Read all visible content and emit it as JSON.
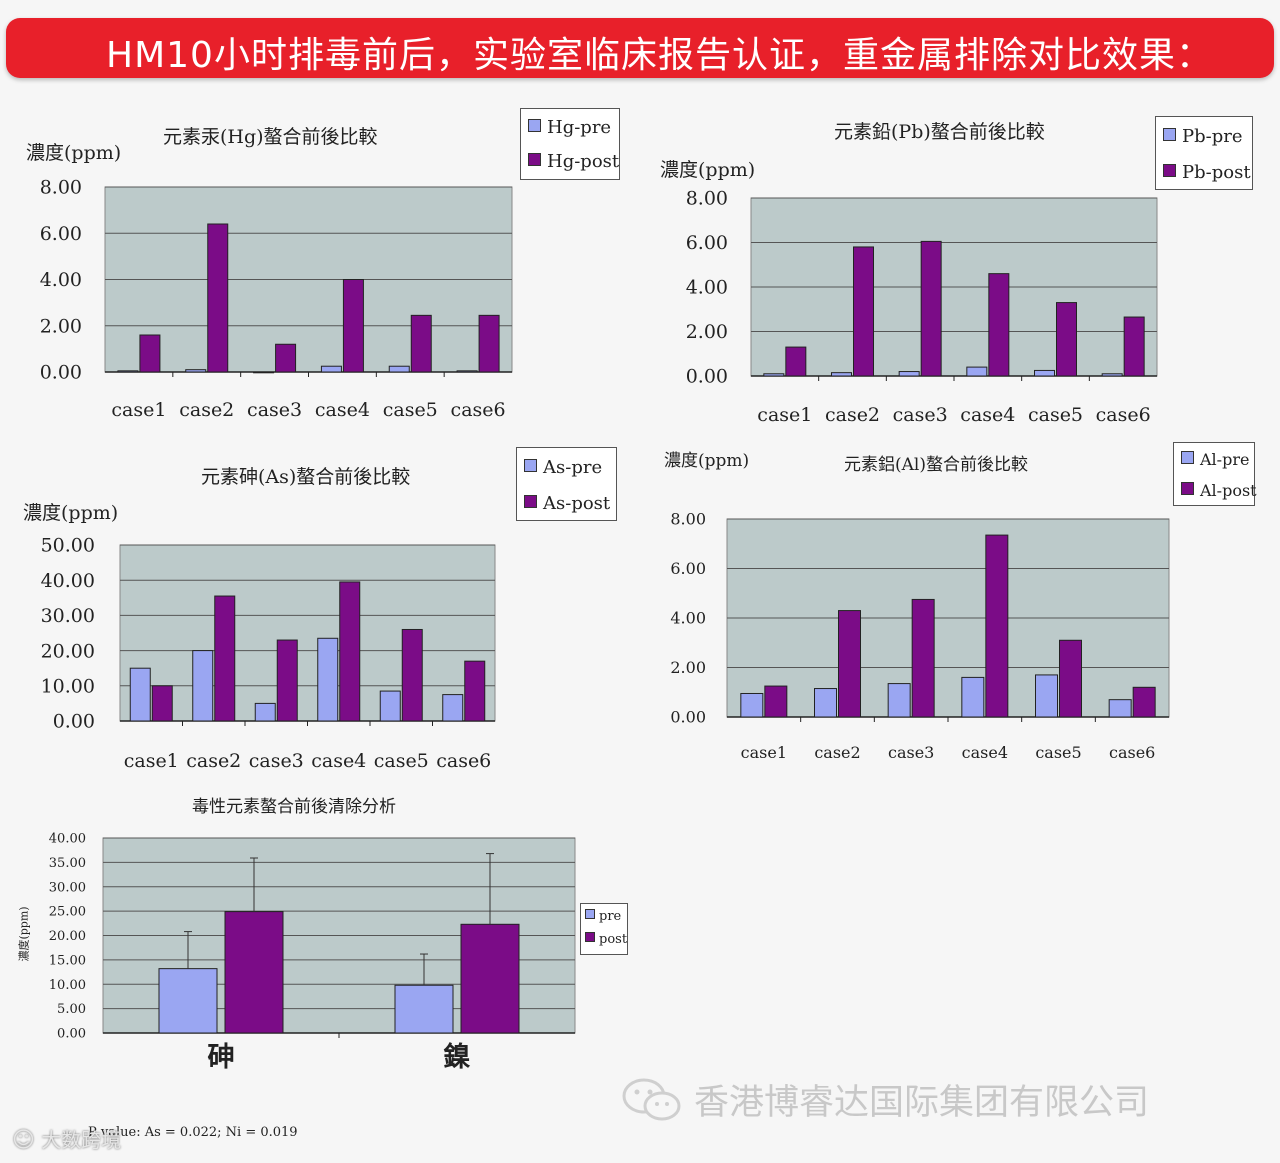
{
  "banner": {
    "text": "HM10小时排毒前后，实验室临床报告认证，重金属排除对比效果："
  },
  "colors": {
    "pre": "#9aa6f2",
    "post": "#7b0c87",
    "plot_bg": "#bccaca",
    "banner": "#e8202a"
  },
  "chart_data": [
    {
      "id": "hg",
      "type": "bar",
      "title": "元素汞(Hg)螯合前後比較",
      "ylabel": "濃度(ppm)",
      "categories": [
        "case1",
        "case2",
        "case3",
        "case4",
        "case5",
        "case6"
      ],
      "ylim": [
        0,
        8
      ],
      "yticks": [
        "0.00",
        "2.00",
        "4.00",
        "6.00",
        "8.00"
      ],
      "series": [
        {
          "name": "Hg-pre",
          "values": [
            0.05,
            0.1,
            0.0,
            0.25,
            0.25,
            0.05
          ]
        },
        {
          "name": "Hg-post",
          "values": [
            1.6,
            6.4,
            1.2,
            4.0,
            2.45,
            2.45
          ]
        }
      ]
    },
    {
      "id": "pb",
      "type": "bar",
      "title": "元素鉛(Pb)螯合前後比較",
      "ylabel": "濃度(ppm)",
      "categories": [
        "case1",
        "case2",
        "case3",
        "case4",
        "case5",
        "case6"
      ],
      "ylim": [
        0,
        8
      ],
      "yticks": [
        "0.00",
        "2.00",
        "4.00",
        "6.00",
        "8.00"
      ],
      "series": [
        {
          "name": "Pb-pre",
          "values": [
            0.1,
            0.15,
            0.2,
            0.4,
            0.25,
            0.1
          ]
        },
        {
          "name": "Pb-post",
          "values": [
            1.3,
            5.8,
            6.05,
            4.6,
            3.3,
            2.65
          ]
        }
      ]
    },
    {
      "id": "as",
      "type": "bar",
      "title": "元素砷(As)螯合前後比較",
      "ylabel": "濃度(ppm)",
      "categories": [
        "case1",
        "case2",
        "case3",
        "case4",
        "case5",
        "case6"
      ],
      "ylim": [
        0,
        50
      ],
      "yticks": [
        "0.00",
        "10.00",
        "20.00",
        "30.00",
        "40.00",
        "50.00"
      ],
      "series": [
        {
          "name": "As-pre",
          "values": [
            15,
            20,
            5,
            23.5,
            8.5,
            7.5
          ]
        },
        {
          "name": "As-post",
          "values": [
            10,
            35.5,
            23,
            39.5,
            26,
            17
          ]
        }
      ]
    },
    {
      "id": "al",
      "type": "bar",
      "title": "元素鋁(Al)螯合前後比較",
      "ylabel": "濃度(ppm)",
      "categories": [
        "case1",
        "case2",
        "case3",
        "case4",
        "case5",
        "case6"
      ],
      "ylim": [
        0,
        8
      ],
      "yticks": [
        "0.00",
        "2.00",
        "4.00",
        "6.00",
        "8.00"
      ],
      "series": [
        {
          "name": "Al-pre",
          "values": [
            0.95,
            1.15,
            1.35,
            1.6,
            1.7,
            0.7
          ]
        },
        {
          "name": "Al-post",
          "values": [
            1.25,
            4.3,
            4.75,
            7.35,
            3.1,
            1.2
          ]
        }
      ]
    },
    {
      "id": "summary",
      "type": "bar",
      "title": "毒性元素螯合前後清除分析",
      "ylabel": "濃度(ppm)",
      "categories": [
        "砷",
        "鎳"
      ],
      "ylim": [
        0,
        40
      ],
      "yticks": [
        "0.00",
        "5.00",
        "10.00",
        "15.00",
        "20.00",
        "25.00",
        "30.00",
        "35.00",
        "40.00"
      ],
      "series": [
        {
          "name": "pre",
          "values": [
            13.2,
            9.8
          ],
          "error_high": [
            20.8,
            16.2
          ]
        },
        {
          "name": "post",
          "values": [
            24.9,
            22.3
          ],
          "error_high": [
            35.9,
            36.8
          ]
        }
      ]
    }
  ],
  "footnote": "P value: As = 0.022;  Ni = 0.019",
  "watermark": "香港博睿达国际集团有限公司",
  "corner_watermark": "大数跨境"
}
